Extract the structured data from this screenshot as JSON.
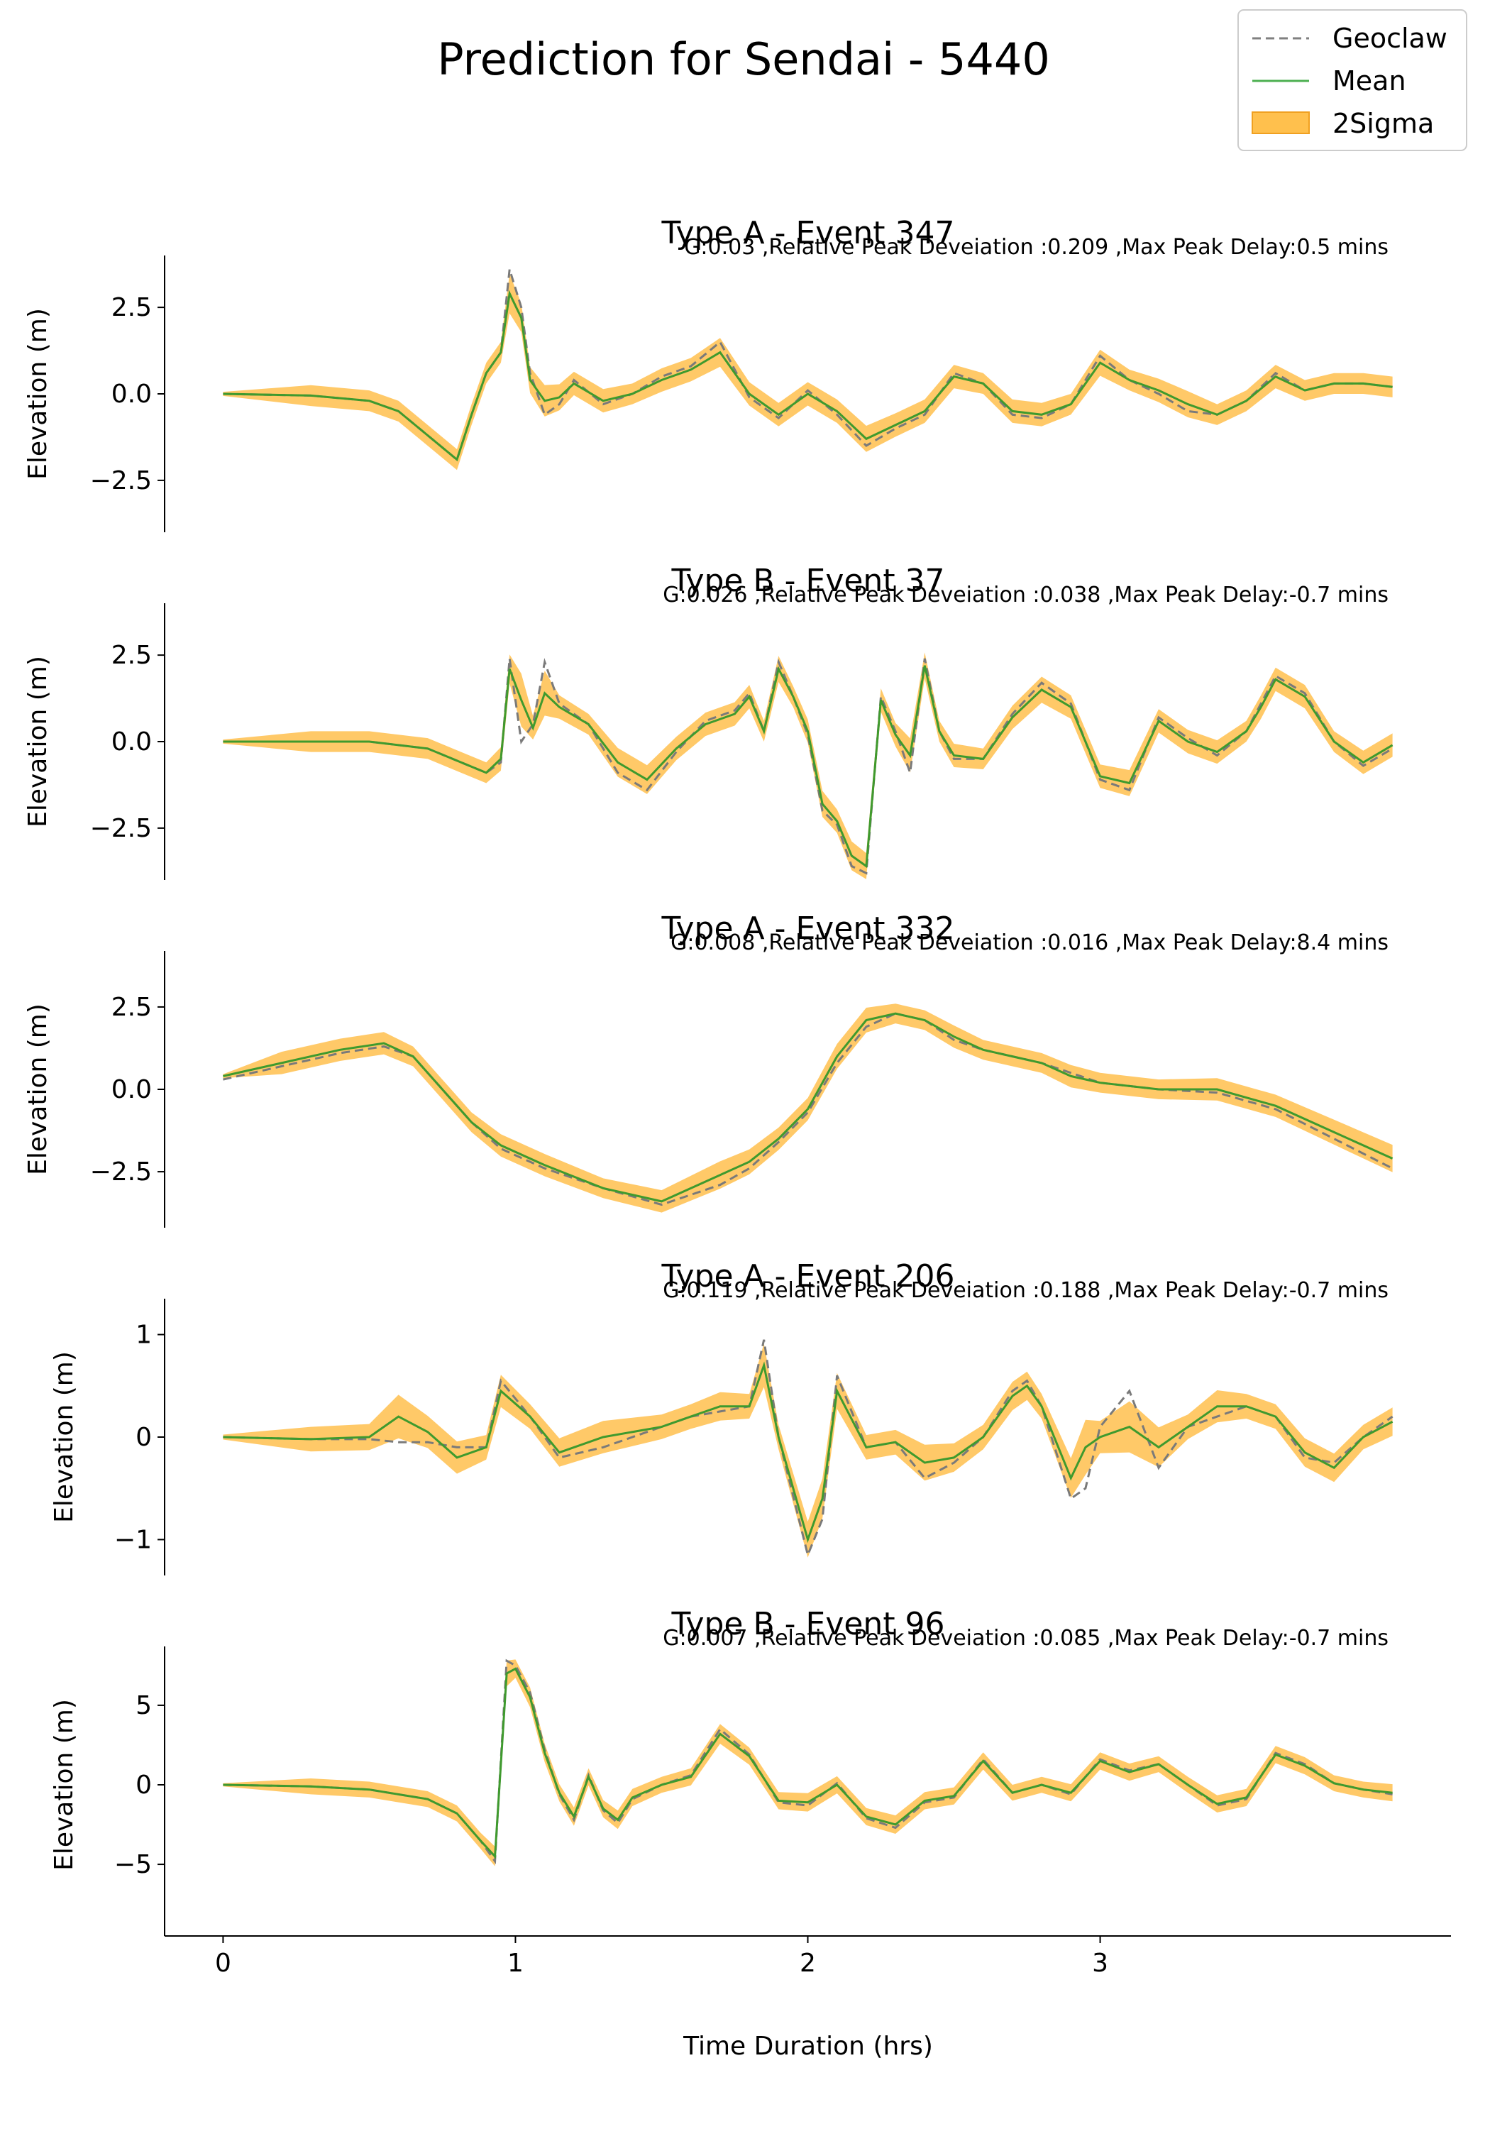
{
  "figure": {
    "title": "Prediction for Sendai - 5440",
    "xlabel": "Time Duration (hrs)",
    "legend": {
      "placement": "top-right",
      "entries": [
        {
          "label": "Geoclaw",
          "style": "dashed",
          "color": "#808080"
        },
        {
          "label": "Mean",
          "style": "line",
          "color": "#4caf50"
        },
        {
          "label": "2Sigma",
          "style": "band",
          "color": "#ffa500"
        }
      ]
    }
  },
  "colors": {
    "geoclaw": "#7a7a7a",
    "mean": "#3f9a2e",
    "band": "#ffc04d"
  },
  "chart_data": [
    {
      "type": "line",
      "title": "Type A - Event 347",
      "subtitle": "G:0.03 ,Relative Peak Deveiation :0.209 ,Max Peak Delay:0.5 mins",
      "ylabel": "Elevation (m)",
      "xlim": [
        -0.2,
        4.2
      ],
      "ylim": [
        -4.0,
        4.0
      ],
      "yticks": [
        2.5,
        0.0,
        -2.5
      ],
      "ytick_labels": [
        "2.5",
        "0.0",
        "−2.5"
      ],
      "x": [
        0,
        0.3,
        0.5,
        0.6,
        0.7,
        0.8,
        0.85,
        0.9,
        0.95,
        0.98,
        1.02,
        1.05,
        1.1,
        1.15,
        1.2,
        1.3,
        1.4,
        1.5,
        1.6,
        1.7,
        1.8,
        1.9,
        2.0,
        2.1,
        2.2,
        2.3,
        2.4,
        2.5,
        2.6,
        2.7,
        2.8,
        2.9,
        3.0,
        3.1,
        3.2,
        3.3,
        3.4,
        3.5,
        3.6,
        3.7,
        3.8,
        3.9,
        4.0
      ],
      "series": [
        {
          "name": "Mean",
          "values": [
            0,
            -0.05,
            -0.2,
            -0.5,
            -1.2,
            -1.9,
            -0.6,
            0.6,
            1.2,
            2.9,
            2.2,
            0.4,
            -0.2,
            -0.1,
            0.3,
            -0.2,
            0.0,
            0.4,
            0.7,
            1.2,
            0.0,
            -0.6,
            0.0,
            -0.5,
            -1.3,
            -0.9,
            -0.5,
            0.5,
            0.3,
            -0.5,
            -0.6,
            -0.3,
            0.9,
            0.4,
            0.1,
            -0.3,
            -0.6,
            -0.2,
            0.5,
            0.1,
            0.3,
            0.3,
            0.2
          ]
        },
        {
          "name": "Geoclaw",
          "values": [
            0,
            -0.05,
            -0.2,
            -0.5,
            -1.2,
            -1.9,
            -0.6,
            0.6,
            1.2,
            3.6,
            2.5,
            0.6,
            -0.6,
            -0.3,
            0.4,
            -0.3,
            0.0,
            0.5,
            0.8,
            1.5,
            -0.1,
            -0.7,
            0.1,
            -0.6,
            -1.5,
            -1.0,
            -0.6,
            0.6,
            0.3,
            -0.6,
            -0.7,
            -0.3,
            1.1,
            0.4,
            0.0,
            -0.5,
            -0.6,
            -0.2,
            0.6,
            0.1,
            0.3,
            0.3,
            0.2
          ]
        }
      ],
      "band_halfwidth": 0.3
    },
    {
      "type": "line",
      "title": "Type B - Event 37",
      "subtitle": "G:0.026 ,Relative Peak Deveiation :0.038 ,Max Peak Delay:-0.7 mins",
      "ylabel": "Elevation (m)",
      "xlim": [
        -0.2,
        4.2
      ],
      "ylim": [
        -4.0,
        4.0
      ],
      "yticks": [
        2.5,
        0.0,
        -2.5
      ],
      "ytick_labels": [
        "2.5",
        "0.0",
        "−2.5"
      ],
      "x": [
        0,
        0.3,
        0.5,
        0.7,
        0.9,
        0.95,
        0.98,
        1.02,
        1.06,
        1.1,
        1.15,
        1.25,
        1.35,
        1.45,
        1.55,
        1.65,
        1.75,
        1.8,
        1.85,
        1.9,
        1.95,
        2.0,
        2.05,
        2.1,
        2.15,
        2.2,
        2.25,
        2.3,
        2.35,
        2.4,
        2.45,
        2.5,
        2.6,
        2.7,
        2.8,
        2.9,
        3.0,
        3.1,
        3.2,
        3.3,
        3.4,
        3.5,
        3.55,
        3.6,
        3.7,
        3.8,
        3.9,
        4.0
      ],
      "series": [
        {
          "name": "Mean",
          "values": [
            0,
            0,
            0,
            -0.2,
            -0.9,
            -0.5,
            2.1,
            1.2,
            0.4,
            1.4,
            1.0,
            0.5,
            -0.6,
            -1.1,
            -0.2,
            0.5,
            0.8,
            1.3,
            0.3,
            2.1,
            1.3,
            0.3,
            -1.8,
            -2.3,
            -3.3,
            -3.6,
            1.2,
            0.2,
            -0.4,
            2.2,
            0.3,
            -0.4,
            -0.5,
            0.7,
            1.5,
            1.0,
            -1.0,
            -1.2,
            0.6,
            0.0,
            -0.3,
            0.3,
            1.0,
            1.8,
            1.3,
            0.0,
            -0.6,
            -0.1
          ]
        },
        {
          "name": "Geoclaw",
          "values": [
            0,
            0,
            0,
            -0.2,
            -0.9,
            -0.6,
            2.4,
            0.0,
            0.5,
            2.3,
            1.1,
            0.5,
            -0.9,
            -1.4,
            -0.3,
            0.6,
            0.9,
            1.4,
            0.3,
            2.3,
            1.3,
            0.2,
            -2.0,
            -2.4,
            -3.6,
            -3.8,
            1.3,
            0.3,
            -0.9,
            2.4,
            0.3,
            -0.5,
            -0.5,
            0.8,
            1.7,
            1.1,
            -1.1,
            -1.4,
            0.7,
            0.1,
            -0.4,
            0.3,
            1.1,
            1.9,
            1.4,
            0.0,
            -0.7,
            -0.2
          ]
        }
      ],
      "band_halfwidth": 0.3
    },
    {
      "type": "line",
      "title": "Type A - Event 332",
      "subtitle": "G:0.008 ,Relative Peak Deveiation :0.016 ,Max Peak Delay:8.4 mins",
      "ylabel": "Elevation (m)",
      "xlim": [
        -0.2,
        4.2
      ],
      "ylim": [
        -4.2,
        4.2
      ],
      "yticks": [
        2.5,
        0.0,
        -2.5
      ],
      "ytick_labels": [
        "2.5",
        "0.0",
        "−2.5"
      ],
      "x": [
        0,
        0.2,
        0.4,
        0.55,
        0.65,
        0.75,
        0.85,
        0.95,
        1.1,
        1.3,
        1.5,
        1.7,
        1.8,
        1.9,
        2.0,
        2.1,
        2.2,
        2.3,
        2.4,
        2.5,
        2.6,
        2.7,
        2.8,
        2.9,
        3.0,
        3.2,
        3.4,
        3.6,
        3.8,
        4.0
      ],
      "series": [
        {
          "name": "Mean",
          "values": [
            0.4,
            0.8,
            1.2,
            1.4,
            1.0,
            0.0,
            -1.0,
            -1.7,
            -2.3,
            -3.0,
            -3.4,
            -2.6,
            -2.2,
            -1.5,
            -0.6,
            1.0,
            2.1,
            2.3,
            2.1,
            1.6,
            1.2,
            1.0,
            0.8,
            0.4,
            0.2,
            0.0,
            0.0,
            -0.5,
            -1.3,
            -2.1
          ]
        },
        {
          "name": "Geoclaw",
          "values": [
            0.3,
            0.7,
            1.1,
            1.3,
            1.0,
            0.0,
            -1.0,
            -1.8,
            -2.4,
            -3.0,
            -3.5,
            -2.9,
            -2.4,
            -1.6,
            -0.7,
            0.8,
            1.9,
            2.3,
            2.1,
            1.5,
            1.2,
            1.0,
            0.8,
            0.5,
            0.2,
            0.0,
            -0.1,
            -0.6,
            -1.5,
            -2.4
          ]
        }
      ],
      "band_halfwidth": 0.3
    },
    {
      "type": "line",
      "title": "Type A - Event 206",
      "subtitle": "G:0.119 ,Relative Peak Deveiation :0.188 ,Max Peak Delay:-0.7 mins",
      "ylabel": "Elevation (m)",
      "xlim": [
        -0.2,
        4.2
      ],
      "ylim": [
        -1.35,
        1.35
      ],
      "yticks": [
        1,
        0,
        -1
      ],
      "ytick_labels": [
        "1",
        "0",
        "−1"
      ],
      "x": [
        0,
        0.3,
        0.5,
        0.6,
        0.7,
        0.8,
        0.9,
        0.95,
        1.05,
        1.15,
        1.3,
        1.5,
        1.6,
        1.7,
        1.8,
        1.85,
        1.9,
        2.0,
        2.05,
        2.1,
        2.2,
        2.3,
        2.4,
        2.5,
        2.6,
        2.7,
        2.75,
        2.8,
        2.9,
        2.95,
        3.0,
        3.1,
        3.2,
        3.3,
        3.4,
        3.5,
        3.6,
        3.7,
        3.8,
        3.9,
        4.0
      ],
      "series": [
        {
          "name": "Mean",
          "values": [
            0,
            -0.02,
            0.0,
            0.2,
            0.05,
            -0.2,
            -0.1,
            0.45,
            0.2,
            -0.15,
            0.0,
            0.1,
            0.2,
            0.3,
            0.3,
            0.7,
            0.0,
            -1.0,
            -0.6,
            0.45,
            -0.1,
            -0.05,
            -0.25,
            -0.2,
            0.0,
            0.4,
            0.5,
            0.3,
            -0.4,
            -0.1,
            0.0,
            0.1,
            -0.1,
            0.1,
            0.3,
            0.3,
            0.2,
            -0.15,
            -0.3,
            0.0,
            0.15
          ]
        },
        {
          "name": "Geoclaw",
          "values": [
            0,
            -0.02,
            -0.02,
            -0.05,
            -0.05,
            -0.1,
            -0.1,
            0.55,
            0.2,
            -0.2,
            -0.1,
            0.1,
            0.2,
            0.25,
            0.3,
            0.95,
            0.0,
            -1.15,
            -0.8,
            0.6,
            -0.1,
            -0.05,
            -0.4,
            -0.25,
            0.0,
            0.45,
            0.55,
            0.3,
            -0.6,
            -0.5,
            0.1,
            0.45,
            -0.3,
            0.1,
            0.2,
            0.3,
            0.2,
            -0.2,
            -0.25,
            0.0,
            0.2
          ]
        }
      ],
      "band_halfwidth": 0.12
    },
    {
      "type": "line",
      "title": "Type B - Event 96",
      "subtitle": "G:0.007 ,Relative Peak Deveiation :0.085 ,Max Peak Delay:-0.7 mins",
      "ylabel": "Elevation (m)",
      "xlim": [
        -0.2,
        4.2
      ],
      "ylim": [
        -8.7,
        8.7
      ],
      "yticks": [
        5,
        0,
        -5
      ],
      "ytick_labels": [
        "5",
        "0",
        "−5"
      ],
      "xticks": [
        0,
        1,
        2,
        3
      ],
      "xtick_labels": [
        "0",
        "1",
        "2",
        "3"
      ],
      "x": [
        0,
        0.3,
        0.5,
        0.7,
        0.8,
        0.88,
        0.93,
        0.97,
        1.0,
        1.05,
        1.1,
        1.15,
        1.2,
        1.25,
        1.3,
        1.35,
        1.4,
        1.5,
        1.6,
        1.7,
        1.8,
        1.9,
        2.0,
        2.1,
        2.2,
        2.3,
        2.4,
        2.5,
        2.6,
        2.7,
        2.8,
        2.9,
        3.0,
        3.1,
        3.2,
        3.3,
        3.4,
        3.5,
        3.6,
        3.7,
        3.8,
        3.9,
        4.0
      ],
      "series": [
        {
          "name": "Mean",
          "values": [
            0,
            -0.1,
            -0.3,
            -0.9,
            -1.8,
            -3.5,
            -4.5,
            7.0,
            7.3,
            5.5,
            2.0,
            -0.5,
            -2.0,
            0.5,
            -1.5,
            -2.2,
            -0.8,
            0.0,
            0.5,
            3.2,
            1.8,
            -1.0,
            -1.1,
            0.0,
            -2.0,
            -2.5,
            -1.0,
            -0.7,
            1.5,
            -0.5,
            0.0,
            -0.5,
            1.5,
            0.8,
            1.3,
            0.0,
            -1.2,
            -0.8,
            1.9,
            1.2,
            0.1,
            -0.3,
            -0.5
          ]
        },
        {
          "name": "Geoclaw",
          "values": [
            0,
            -0.1,
            -0.3,
            -0.9,
            -1.8,
            -3.5,
            -4.8,
            7.8,
            7.5,
            5.8,
            2.2,
            -0.6,
            -2.2,
            0.6,
            -1.6,
            -2.4,
            -0.9,
            0.0,
            0.6,
            3.5,
            1.9,
            -1.1,
            -1.3,
            0.1,
            -2.1,
            -2.7,
            -1.1,
            -0.8,
            1.6,
            -0.5,
            0.0,
            -0.6,
            1.6,
            0.9,
            1.3,
            0.0,
            -1.3,
            -0.9,
            2.0,
            1.3,
            0.1,
            -0.3,
            -0.6
          ]
        }
      ],
      "band_halfwidth": 0.5
    }
  ]
}
